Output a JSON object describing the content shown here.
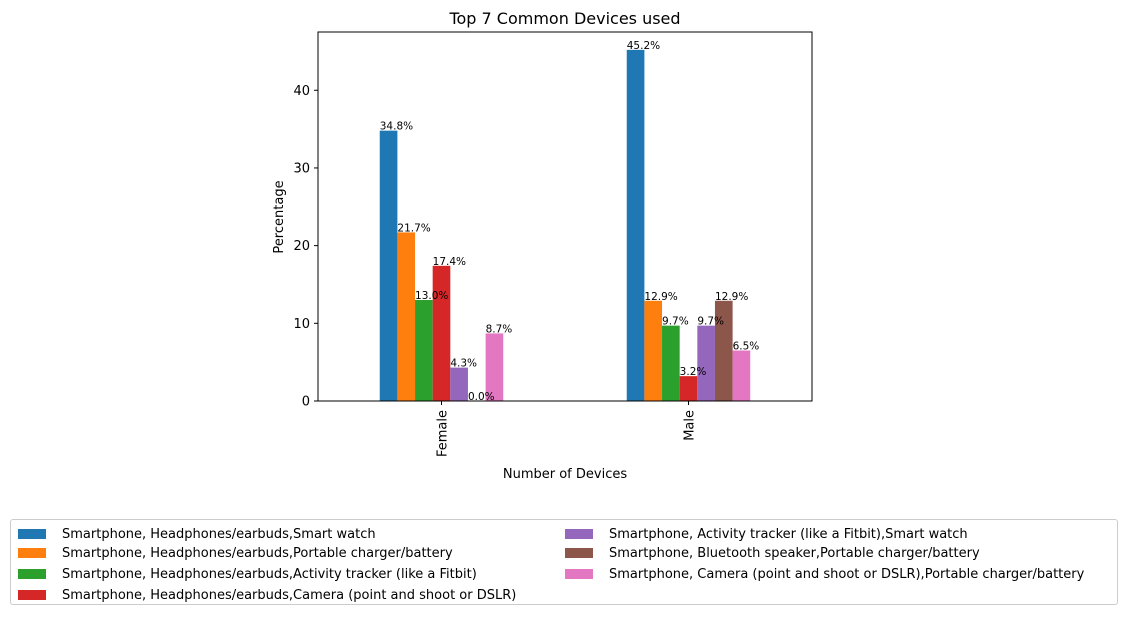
{
  "chart_data": {
    "type": "bar",
    "title": "Top 7 Common Devices used",
    "xlabel": "Number of Devices",
    "ylabel": "Percentage",
    "categories": [
      "Female",
      "Male"
    ],
    "ylim": [
      0,
      47.5
    ],
    "yticks": [
      0,
      10,
      20,
      30,
      40
    ],
    "grid": false,
    "legend_position": "bottom",
    "series": [
      {
        "name": "Smartphone, Headphones/earbuds,Smart watch",
        "color": "#1f77b4",
        "values": [
          34.8,
          45.2
        ],
        "labels": [
          "34.8%",
          "45.2%"
        ]
      },
      {
        "name": "Smartphone, Headphones/earbuds,Portable charger/battery",
        "color": "#ff7f0e",
        "values": [
          21.7,
          12.9
        ],
        "labels": [
          "21.7%",
          "12.9%"
        ]
      },
      {
        "name": "Smartphone, Headphones/earbuds,Activity tracker (like a Fitbit)",
        "color": "#2ca02c",
        "values": [
          13.0,
          9.7
        ],
        "labels": [
          "13.0%",
          "9.7%"
        ]
      },
      {
        "name": "Smartphone, Headphones/earbuds,Camera (point and shoot or DSLR)",
        "color": "#d62728",
        "values": [
          17.4,
          3.2
        ],
        "labels": [
          "17.4%",
          "3.2%"
        ]
      },
      {
        "name": "Smartphone, Activity tracker (like a Fitbit),Smart watch",
        "color": "#9467bd",
        "values": [
          4.3,
          9.7
        ],
        "labels": [
          "4.3%",
          "9.7%"
        ]
      },
      {
        "name": "Smartphone, Bluetooth speaker,Portable charger/battery",
        "color": "#8c564b",
        "values": [
          0.0,
          12.9
        ],
        "labels": [
          "0.0%",
          "12.9%"
        ]
      },
      {
        "name": "Smartphone, Camera (point and shoot or DSLR),Portable charger/battery",
        "color": "#e377c2",
        "values": [
          8.7,
          6.5
        ],
        "labels": [
          "8.7%",
          "6.5%"
        ]
      }
    ]
  }
}
